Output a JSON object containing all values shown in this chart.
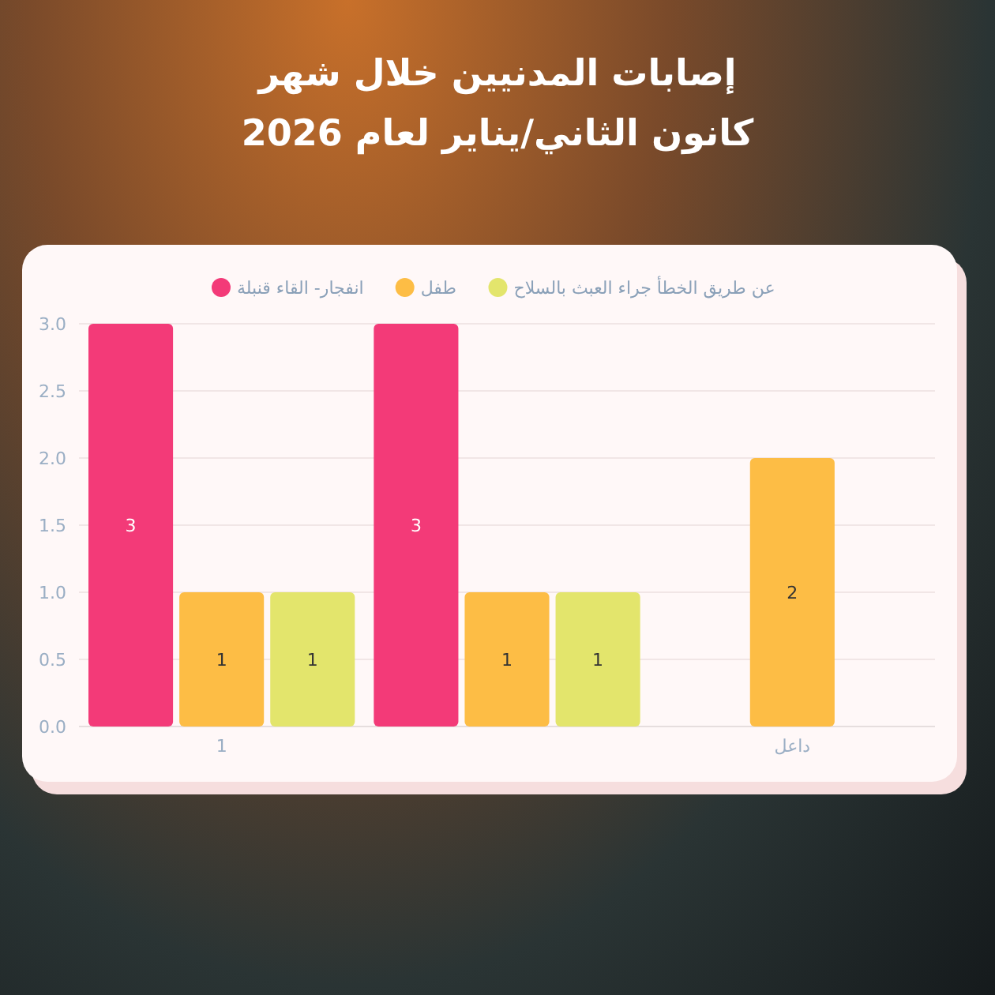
{
  "chart_data": {
    "type": "bar",
    "title": "إصابات المدنيين خلال شهر كانون الثاني/يناير لعام 2026",
    "categories": [
      "1",
      null,
      "داعل"
    ],
    "series": [
      {
        "name": "انفجار- القاء قنبلة",
        "color": "#f33a78",
        "values": [
          3,
          3,
          null
        ]
      },
      {
        "name": "طفل",
        "color": "#fdbd45",
        "values": [
          1,
          1,
          2
        ]
      },
      {
        "name": "عن طريق الخطأ جراء العبث بالسلاح",
        "color": "#e3e56c",
        "values": [
          1,
          1,
          null
        ]
      }
    ],
    "ylim": [
      0,
      3
    ],
    "yticks": [
      {
        "value": 0,
        "label": "0.0"
      },
      0.5,
      {
        "value": 1,
        "label": "1.0"
      },
      1.5,
      {
        "value": 2,
        "label": "2.0"
      },
      2.5,
      {
        "value": 3,
        "label": "3.0"
      }
    ],
    "grid": "y",
    "legend": "top",
    "data_labels": true
  }
}
